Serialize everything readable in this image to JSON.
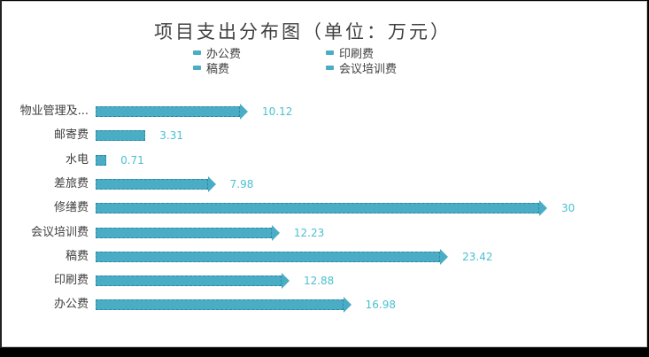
{
  "chart_data": {
    "type": "bar",
    "orientation": "horizontal",
    "title": "项目支出分布图（单位：万元）",
    "categories": [
      "物业管理及...",
      "邮寄费",
      "水电",
      "差旅费",
      "修缮费",
      "会议培训费",
      "稿费",
      "印刷费",
      "办公费"
    ],
    "values": [
      10.12,
      3.31,
      0.71,
      7.98,
      30,
      12.23,
      23.42,
      12.88,
      16.98
    ],
    "value_labels": [
      "10.12",
      "3.31",
      "0.71",
      "7.98",
      "30",
      "12.23",
      "23.42",
      "12.88",
      "16.98"
    ],
    "legend": [
      "办公费",
      "印刷费",
      "稿费",
      "会议培训费"
    ],
    "legend_position": "top",
    "xlabel": "",
    "ylabel": "",
    "grid": false,
    "bar_color": "#4aacc5",
    "label_color": "#4bc0d0"
  },
  "title": "项目支出分布图（单位：万元）",
  "legend": {
    "items": [
      "办公费",
      "印刷费",
      "稿费",
      "会议培训费"
    ]
  }
}
